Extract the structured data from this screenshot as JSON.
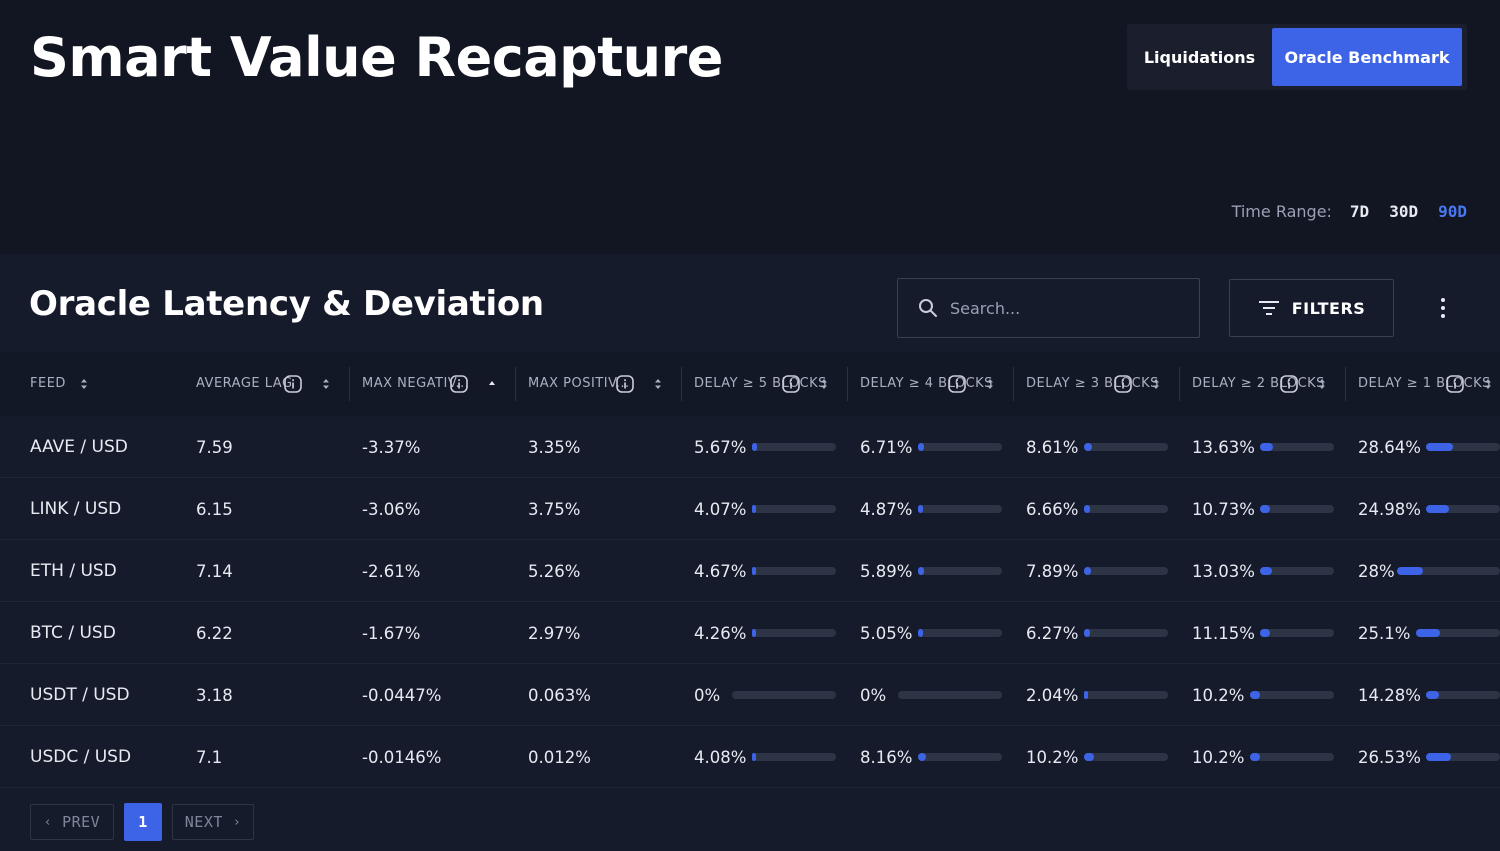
{
  "header": {
    "title": "Smart Value Recapture",
    "tabs": [
      {
        "label": "Liquidations",
        "active": false
      },
      {
        "label": "Oracle Benchmark",
        "active": true
      }
    ]
  },
  "time_range": {
    "label": "Time Range:",
    "options": [
      "7D",
      "30D",
      "90D"
    ],
    "selected": "90D"
  },
  "table_card": {
    "title": "Oracle Latency & Deviation",
    "search_placeholder": "Search...",
    "filters_label": "FILTERS",
    "columns": [
      {
        "label": "FEED"
      },
      {
        "label": "AVERAGE LAG"
      },
      {
        "label": "MAX NEGATIV..."
      },
      {
        "label": "MAX POSITIV..."
      },
      {
        "label": "DELAY ≥ 5 BLOCKS"
      },
      {
        "label": "DELAY ≥ 4 BLOCKS"
      },
      {
        "label": "DELAY ≥ 3 BLOCKS"
      },
      {
        "label": "DELAY ≥ 2 BLOCKS"
      },
      {
        "label": "DELAY ≥ 1 BLOCKS"
      }
    ],
    "rows": [
      {
        "feed": "AAVE / USD",
        "avg_lag": "7.59",
        "max_neg": "-3.37%",
        "max_pos": "3.35%",
        "d5": "5.67%",
        "d4": "6.71%",
        "d3": "8.61%",
        "d2": "13.63%",
        "d1": "28.64%"
      },
      {
        "feed": "LINK / USD",
        "avg_lag": "6.15",
        "max_neg": "-3.06%",
        "max_pos": "3.75%",
        "d5": "4.07%",
        "d4": "4.87%",
        "d3": "6.66%",
        "d2": "10.73%",
        "d1": "24.98%"
      },
      {
        "feed": "ETH / USD",
        "avg_lag": "7.14",
        "max_neg": "-2.61%",
        "max_pos": "5.26%",
        "d5": "4.67%",
        "d4": "5.89%",
        "d3": "7.89%",
        "d2": "13.03%",
        "d1": "28%"
      },
      {
        "feed": "BTC / USD",
        "avg_lag": "6.22",
        "max_neg": "-1.67%",
        "max_pos": "2.97%",
        "d5": "4.26%",
        "d4": "5.05%",
        "d3": "6.27%",
        "d2": "11.15%",
        "d1": "25.1%"
      },
      {
        "feed": "USDT / USD",
        "avg_lag": "3.18",
        "max_neg": "-0.0447%",
        "max_pos": "0.063%",
        "d5": "0%",
        "d4": "0%",
        "d3": "2.04%",
        "d2": "10.2%",
        "d1": "14.28%"
      },
      {
        "feed": "USDC / USD",
        "avg_lag": "7.1",
        "max_neg": "-0.0146%",
        "max_pos": "0.012%",
        "d5": "4.08%",
        "d4": "8.16%",
        "d3": "10.2%",
        "d2": "10.2%",
        "d1": "26.53%"
      }
    ]
  },
  "pagination": {
    "prev_label": "PREV",
    "current_page": "1",
    "next_label": "NEXT"
  },
  "colors": {
    "accent": "#3d63e6",
    "background": "#121522",
    "card": "#161b2c"
  }
}
